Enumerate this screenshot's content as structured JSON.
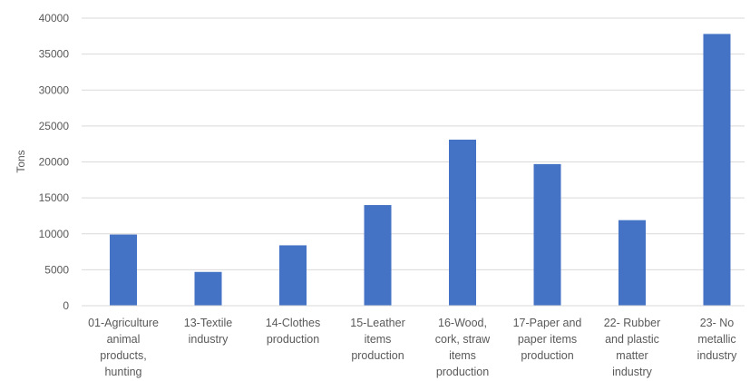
{
  "chart_data": {
    "type": "bar",
    "title": "",
    "xlabel": "",
    "ylabel": "Tons",
    "ylim": [
      0,
      40000
    ],
    "yticks": [
      0,
      5000,
      10000,
      15000,
      20000,
      25000,
      30000,
      35000,
      40000
    ],
    "grid": true,
    "legend": "none",
    "bar_color": "#4472C4",
    "categories": [
      [
        "01-Agriculture",
        "animal",
        "products,",
        "hunting"
      ],
      [
        "13-Textile",
        "industry"
      ],
      [
        "14-Clothes",
        "production"
      ],
      [
        "15-Leather",
        "items",
        "production"
      ],
      [
        "16-Wood,",
        "cork, straw",
        "items",
        "production"
      ],
      [
        "17-Paper and",
        "paper items",
        "production"
      ],
      [
        "22- Rubber",
        "and plastic",
        "matter",
        "industry"
      ],
      [
        "23- No",
        "metallic",
        "industry"
      ]
    ],
    "values": [
      9900,
      4700,
      8400,
      14000,
      23100,
      19700,
      11900,
      37800
    ]
  }
}
